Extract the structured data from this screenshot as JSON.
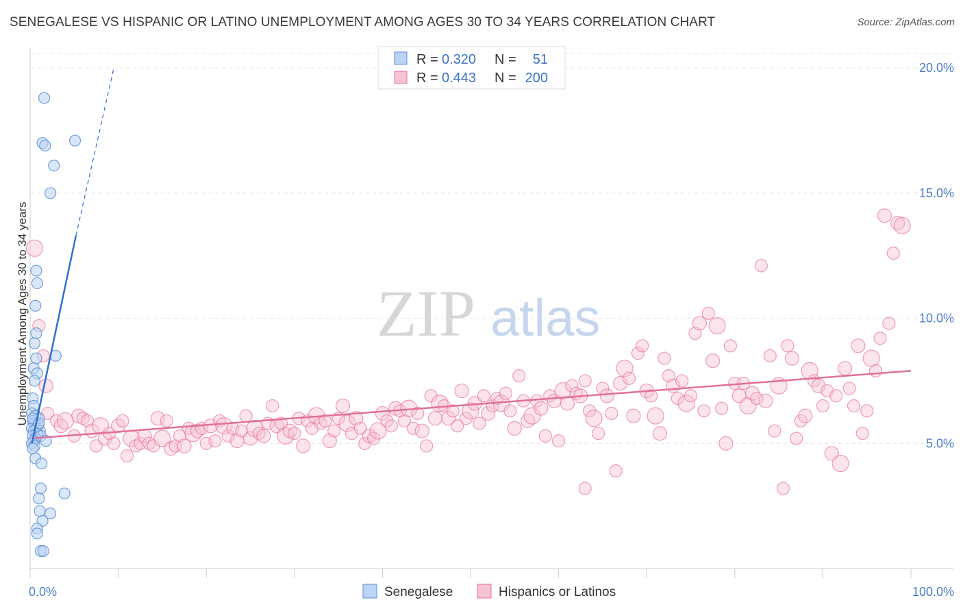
{
  "title": "SENEGALESE VS HISPANIC OR LATINO UNEMPLOYMENT AMONG AGES 30 TO 34 YEARS CORRELATION CHART",
  "source": "Source: ZipAtlas.com",
  "watermark": {
    "zip": "ZIP",
    "atlas": "atlas"
  },
  "colors": {
    "blue": "#5b8fd6",
    "blue_fill": "#bcd3f3",
    "blue_line": "#2f6fd0",
    "pink": "#e8739a",
    "pink_fill": "#f6c3d4",
    "pink_line": "#e0709a",
    "tick": "#4a7bc8"
  },
  "chart_data": {
    "type": "scatter",
    "ylabel": "Unemployment Among Ages 30 to 34 years",
    "xlim": [
      0,
      100
    ],
    "ylim": [
      0,
      20.8
    ],
    "x_tick_labels": [
      "0.0%",
      "100.0%"
    ],
    "y_ticks": [
      5,
      10,
      15,
      20
    ],
    "y_tick_labels": [
      "5.0%",
      "10.0%",
      "15.0%",
      "20.0%"
    ],
    "grid": "horizontal-dashed",
    "legend_top": {
      "rows": [
        {
          "r_label": "R = ",
          "r_value": "0.320",
          "n_label": "N = ",
          "n_value": "51"
        },
        {
          "r_label": "R = ",
          "r_value": "0.443",
          "n_label": "N = ",
          "n_value": "200"
        }
      ]
    },
    "legend_bottom": [
      "Senegalese",
      "Hispanics or Latinos"
    ],
    "series": [
      {
        "name": "Senegalese",
        "trend": {
          "x0": 0.2,
          "y0": 5.0,
          "x1": 5.2,
          "y1": 13.3,
          "dash_to_x": 9.5,
          "dash_to_y": 20.0
        },
        "points": [
          [
            1.6,
            18.8
          ],
          [
            1.4,
            17.0
          ],
          [
            1.7,
            16.9
          ],
          [
            5.1,
            17.1
          ],
          [
            2.7,
            16.1
          ],
          [
            2.3,
            15.0
          ],
          [
            0.7,
            11.9
          ],
          [
            0.8,
            11.4
          ],
          [
            0.6,
            10.5
          ],
          [
            0.7,
            9.4
          ],
          [
            0.5,
            9.0
          ],
          [
            0.7,
            8.4
          ],
          [
            2.9,
            8.5
          ],
          [
            0.4,
            8.0
          ],
          [
            0.8,
            7.8
          ],
          [
            0.5,
            7.5
          ],
          [
            0.3,
            6.8
          ],
          [
            0.4,
            6.5
          ],
          [
            0.2,
            6.2
          ],
          [
            0.6,
            6.1
          ],
          [
            1.0,
            6.0
          ],
          [
            0.3,
            5.9
          ],
          [
            0.5,
            5.8
          ],
          [
            0.9,
            5.7
          ],
          [
            0.2,
            5.6
          ],
          [
            0.7,
            5.6
          ],
          [
            1.1,
            5.5
          ],
          [
            0.4,
            5.5
          ],
          [
            0.8,
            5.4
          ],
          [
            0.3,
            5.3
          ],
          [
            0.6,
            5.2
          ],
          [
            1.2,
            5.3
          ],
          [
            0.4,
            5.1
          ],
          [
            1.8,
            5.1
          ],
          [
            0.2,
            5.0
          ],
          [
            0.5,
            4.9
          ],
          [
            0.3,
            4.8
          ],
          [
            0.6,
            4.4
          ],
          [
            1.3,
            4.2
          ],
          [
            1.2,
            3.2
          ],
          [
            1.0,
            2.8
          ],
          [
            3.9,
            3.0
          ],
          [
            1.1,
            2.3
          ],
          [
            2.3,
            2.2
          ],
          [
            1.4,
            1.9
          ],
          [
            0.8,
            1.6
          ],
          [
            0.8,
            1.4
          ],
          [
            1.2,
            0.7
          ],
          [
            1.5,
            0.7
          ],
          [
            0.3,
            6.0
          ],
          [
            1.0,
            5.8
          ]
        ]
      },
      {
        "name": "Hispanics or Latinos",
        "trend": {
          "x0": 0.2,
          "y0": 5.2,
          "x1": 100,
          "y1": 7.9
        },
        "points": [
          [
            0.5,
            12.8
          ],
          [
            1.0,
            9.7
          ],
          [
            1.5,
            8.5
          ],
          [
            1.8,
            7.3
          ],
          [
            2.0,
            6.2
          ],
          [
            3.0,
            5.9
          ],
          [
            3.5,
            5.7
          ],
          [
            4.0,
            5.9
          ],
          [
            5.0,
            5.3
          ],
          [
            5.5,
            6.1
          ],
          [
            6.0,
            6.0
          ],
          [
            6.5,
            5.9
          ],
          [
            7.0,
            5.5
          ],
          [
            7.5,
            4.9
          ],
          [
            8.0,
            5.7
          ],
          [
            8.5,
            5.2
          ],
          [
            9.0,
            5.4
          ],
          [
            9.5,
            5.0
          ],
          [
            10.0,
            5.7
          ],
          [
            10.5,
            5.9
          ],
          [
            11.0,
            4.5
          ],
          [
            11.5,
            5.2
          ],
          [
            12.0,
            4.9
          ],
          [
            12.5,
            5.0
          ],
          [
            13.0,
            5.3
          ],
          [
            13.5,
            5.0
          ],
          [
            14.0,
            4.9
          ],
          [
            14.5,
            6.0
          ],
          [
            15.0,
            5.2
          ],
          [
            15.5,
            5.9
          ],
          [
            16.0,
            4.8
          ],
          [
            16.5,
            4.9
          ],
          [
            17.0,
            5.3
          ],
          [
            17.5,
            4.9
          ],
          [
            18.0,
            5.6
          ],
          [
            18.5,
            5.4
          ],
          [
            19.0,
            5.5
          ],
          [
            19.5,
            5.6
          ],
          [
            20.0,
            5.0
          ],
          [
            20.5,
            5.7
          ],
          [
            21.0,
            5.1
          ],
          [
            21.5,
            5.9
          ],
          [
            22.0,
            5.7
          ],
          [
            22.5,
            5.3
          ],
          [
            23.0,
            5.6
          ],
          [
            23.5,
            5.1
          ],
          [
            24.0,
            5.5
          ],
          [
            24.5,
            6.1
          ],
          [
            25.0,
            5.2
          ],
          [
            25.5,
            5.6
          ],
          [
            26.0,
            5.4
          ],
          [
            26.5,
            5.3
          ],
          [
            27.0,
            5.8
          ],
          [
            27.5,
            6.5
          ],
          [
            28.0,
            5.7
          ],
          [
            28.5,
            5.8
          ],
          [
            29.0,
            5.3
          ],
          [
            29.5,
            5.5
          ],
          [
            30.0,
            5.4
          ],
          [
            30.5,
            6.0
          ],
          [
            31.0,
            4.9
          ],
          [
            31.5,
            5.9
          ],
          [
            32.0,
            5.6
          ],
          [
            32.5,
            6.1
          ],
          [
            33.0,
            5.8
          ],
          [
            33.5,
            5.9
          ],
          [
            34.0,
            5.1
          ],
          [
            34.5,
            5.5
          ],
          [
            35.0,
            6.0
          ],
          [
            35.5,
            6.5
          ],
          [
            36.0,
            5.8
          ],
          [
            36.5,
            5.4
          ],
          [
            37.0,
            6.0
          ],
          [
            37.5,
            5.6
          ],
          [
            38.0,
            5.0
          ],
          [
            38.5,
            5.3
          ],
          [
            39.0,
            5.2
          ],
          [
            39.5,
            5.5
          ],
          [
            40.0,
            6.2
          ],
          [
            40.5,
            5.9
          ],
          [
            41.0,
            5.7
          ],
          [
            41.5,
            6.4
          ],
          [
            42.0,
            6.3
          ],
          [
            42.5,
            5.9
          ],
          [
            43.0,
            6.4
          ],
          [
            43.5,
            5.6
          ],
          [
            44.0,
            6.2
          ],
          [
            44.5,
            5.5
          ],
          [
            45.0,
            4.9
          ],
          [
            45.5,
            6.9
          ],
          [
            46.0,
            6.0
          ],
          [
            46.5,
            6.6
          ],
          [
            47.0,
            6.5
          ],
          [
            47.5,
            6.0
          ],
          [
            48.0,
            6.3
          ],
          [
            48.5,
            5.7
          ],
          [
            49.0,
            7.1
          ],
          [
            49.5,
            6.0
          ],
          [
            50.0,
            6.3
          ],
          [
            50.5,
            6.6
          ],
          [
            51.0,
            5.8
          ],
          [
            51.5,
            6.9
          ],
          [
            52.0,
            6.2
          ],
          [
            52.5,
            6.5
          ],
          [
            53.0,
            6.8
          ],
          [
            53.5,
            6.6
          ],
          [
            54.0,
            7.0
          ],
          [
            54.5,
            6.3
          ],
          [
            55.0,
            5.6
          ],
          [
            55.5,
            7.7
          ],
          [
            56.0,
            6.7
          ],
          [
            56.5,
            5.9
          ],
          [
            57.0,
            6.1
          ],
          [
            57.5,
            6.7
          ],
          [
            58.0,
            6.4
          ],
          [
            58.5,
            5.3
          ],
          [
            59.0,
            6.9
          ],
          [
            59.5,
            6.7
          ],
          [
            60.0,
            5.1
          ],
          [
            60.5,
            7.1
          ],
          [
            61.0,
            6.6
          ],
          [
            61.5,
            7.3
          ],
          [
            62.0,
            7.0
          ],
          [
            62.5,
            6.9
          ],
          [
            63.0,
            7.5
          ],
          [
            63.5,
            6.3
          ],
          [
            64.0,
            6.0
          ],
          [
            64.5,
            5.4
          ],
          [
            65.0,
            7.2
          ],
          [
            65.5,
            6.9
          ],
          [
            66.0,
            6.2
          ],
          [
            66.5,
            3.9
          ],
          [
            67.0,
            7.4
          ],
          [
            67.5,
            8.0
          ],
          [
            68.0,
            7.6
          ],
          [
            68.5,
            6.1
          ],
          [
            69.0,
            8.6
          ],
          [
            69.5,
            8.9
          ],
          [
            70.0,
            7.1
          ],
          [
            70.5,
            6.9
          ],
          [
            71.0,
            6.1
          ],
          [
            71.5,
            5.4
          ],
          [
            72.0,
            8.4
          ],
          [
            72.5,
            7.7
          ],
          [
            73.0,
            7.3
          ],
          [
            73.5,
            6.8
          ],
          [
            74.0,
            7.5
          ],
          [
            74.5,
            6.6
          ],
          [
            75.0,
            6.9
          ],
          [
            75.5,
            9.4
          ],
          [
            76.0,
            9.8
          ],
          [
            76.5,
            6.3
          ],
          [
            77.0,
            10.2
          ],
          [
            77.5,
            8.3
          ],
          [
            78.0,
            9.7
          ],
          [
            78.5,
            6.4
          ],
          [
            79.0,
            5.0
          ],
          [
            79.5,
            8.9
          ],
          [
            80.0,
            7.4
          ],
          [
            80.5,
            6.9
          ],
          [
            81.0,
            7.4
          ],
          [
            81.5,
            6.5
          ],
          [
            82.0,
            7.0
          ],
          [
            82.5,
            6.8
          ],
          [
            83.0,
            12.1
          ],
          [
            83.5,
            6.7
          ],
          [
            84.0,
            8.5
          ],
          [
            84.5,
            5.5
          ],
          [
            85.0,
            7.3
          ],
          [
            85.5,
            3.2
          ],
          [
            86.0,
            8.9
          ],
          [
            86.5,
            8.4
          ],
          [
            87.0,
            5.2
          ],
          [
            87.5,
            5.9
          ],
          [
            88.0,
            6.1
          ],
          [
            88.5,
            7.9
          ],
          [
            89.0,
            7.5
          ],
          [
            89.5,
            7.3
          ],
          [
            90.0,
            6.5
          ],
          [
            90.5,
            7.1
          ],
          [
            91.0,
            4.6
          ],
          [
            91.5,
            6.9
          ],
          [
            92.0,
            4.2
          ],
          [
            92.5,
            8.0
          ],
          [
            93.0,
            7.2
          ],
          [
            93.5,
            6.5
          ],
          [
            94.0,
            8.9
          ],
          [
            94.5,
            5.4
          ],
          [
            95.0,
            6.3
          ],
          [
            95.5,
            8.4
          ],
          [
            96.0,
            7.9
          ],
          [
            96.5,
            9.2
          ],
          [
            97.0,
            14.1
          ],
          [
            97.5,
            9.8
          ],
          [
            98.0,
            12.6
          ],
          [
            98.5,
            13.8
          ],
          [
            99.0,
            13.7
          ],
          [
            63.0,
            3.2
          ]
        ]
      }
    ]
  }
}
